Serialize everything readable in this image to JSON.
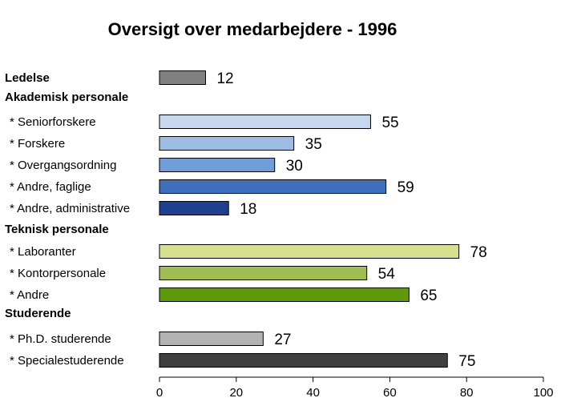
{
  "chart_data": {
    "type": "bar",
    "orientation": "horizontal",
    "title": "Oversigt over medarbejdere - 1996",
    "xlim": [
      0,
      100
    ],
    "xticks": [
      0,
      20,
      40,
      60,
      80,
      100
    ],
    "grid": false,
    "legend": "none",
    "rows": [
      {
        "kind": "category",
        "label": "Ledelse",
        "bold": true,
        "value": 12,
        "color": "#808080"
      },
      {
        "kind": "group",
        "label": "Akademisk personale"
      },
      {
        "kind": "category",
        "label": "* Seniorforskere",
        "value": 55,
        "color": "#c6d7ee"
      },
      {
        "kind": "category",
        "label": "* Forskere",
        "value": 35,
        "color": "#9dbde5"
      },
      {
        "kind": "category",
        "label": "* Overgangsordning",
        "value": 30,
        "color": "#6f9ed8"
      },
      {
        "kind": "category",
        "label": "* Andre, faglige",
        "value": 59,
        "color": "#3f70bd"
      },
      {
        "kind": "category",
        "label": "* Andre, administrative",
        "value": 18,
        "color": "#1f3f8f"
      },
      {
        "kind": "group",
        "label": "Teknisk personale"
      },
      {
        "kind": "category",
        "label": "* Laboranter",
        "value": 78,
        "color": "#d6e08e"
      },
      {
        "kind": "category",
        "label": "* Kontorpersonale",
        "value": 54,
        "color": "#9fbf52"
      },
      {
        "kind": "category",
        "label": "* Andre",
        "value": 65,
        "color": "#5e9a0c"
      },
      {
        "kind": "group",
        "label": "Studerende"
      },
      {
        "kind": "category",
        "label": "* Ph.D. studerende",
        "value": 27,
        "color": "#b2b2b2"
      },
      {
        "kind": "category",
        "label": "* Specialestuderende",
        "value": 75,
        "color": "#404040"
      }
    ]
  }
}
